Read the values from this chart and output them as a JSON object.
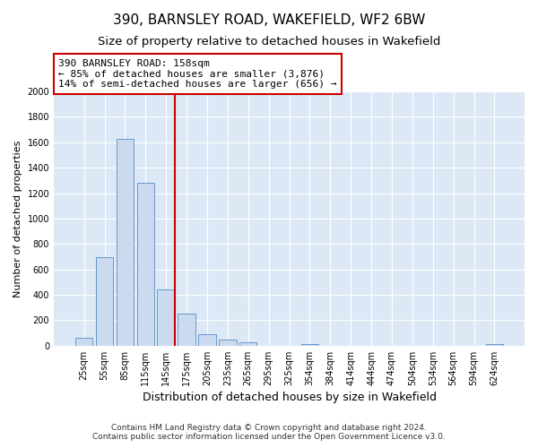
{
  "title": "390, BARNSLEY ROAD, WAKEFIELD, WF2 6BW",
  "subtitle": "Size of property relative to detached houses in Wakefield",
  "xlabel": "Distribution of detached houses by size in Wakefield",
  "ylabel": "Number of detached properties",
  "bar_labels": [
    "25sqm",
    "55sqm",
    "85sqm",
    "115sqm",
    "145sqm",
    "175sqm",
    "205sqm",
    "235sqm",
    "265sqm",
    "295sqm",
    "325sqm",
    "354sqm",
    "384sqm",
    "414sqm",
    "444sqm",
    "474sqm",
    "504sqm",
    "534sqm",
    "564sqm",
    "594sqm",
    "624sqm"
  ],
  "bar_values": [
    65,
    695,
    1630,
    1280,
    440,
    250,
    90,
    50,
    30,
    0,
    0,
    15,
    0,
    0,
    0,
    0,
    0,
    0,
    0,
    0,
    15
  ],
  "bar_color": "#ccdaf0",
  "bar_edge_color": "#6699cc",
  "ylim": [
    0,
    2000
  ],
  "yticks": [
    0,
    200,
    400,
    600,
    800,
    1000,
    1200,
    1400,
    1600,
    1800,
    2000
  ],
  "vline_x_index": 4.43,
  "vline_color": "#cc0000",
  "annotation_title": "390 BARNSLEY ROAD: 158sqm",
  "annotation_line1": "← 85% of detached houses are smaller (3,876)",
  "annotation_line2": "14% of semi-detached houses are larger (656) →",
  "annotation_box_color": "#ffffff",
  "annotation_box_edge": "#cc0000",
  "footer_line1": "Contains HM Land Registry data © Crown copyright and database right 2024.",
  "footer_line2": "Contains public sector information licensed under the Open Government Licence v3.0.",
  "figure_background": "#ffffff",
  "plot_background": "#dce8f5",
  "grid_color": "#ffffff",
  "title_fontsize": 11,
  "subtitle_fontsize": 9.5,
  "xlabel_fontsize": 9,
  "ylabel_fontsize": 8,
  "tick_fontsize": 7,
  "annotation_fontsize": 8,
  "footer_fontsize": 6.5
}
